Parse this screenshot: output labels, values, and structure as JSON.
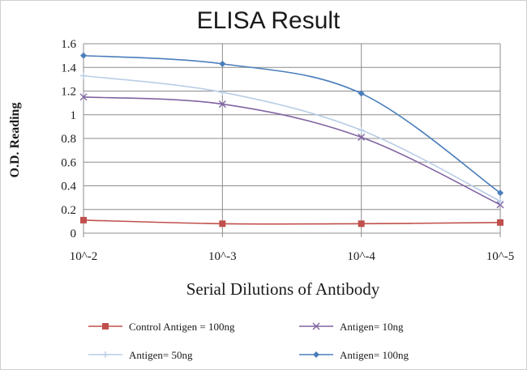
{
  "chart_data": {
    "type": "line",
    "title": "ELISA Result",
    "xlabel": "Serial Dilutions  of Antibody",
    "ylabel": "O.D. Reading",
    "categories": [
      "10^-2",
      "10^-3",
      "10^-4",
      "10^-5"
    ],
    "ylim": [
      0,
      1.6
    ],
    "yticks": [
      0,
      0.2,
      0.4,
      0.6,
      0.8,
      1,
      1.2,
      1.4,
      1.6
    ],
    "grid": true,
    "legend_position": "bottom",
    "series": [
      {
        "name": "Control Antigen = 100ng",
        "values": [
          0.11,
          0.08,
          0.08,
          0.09
        ],
        "color": "#c0504d",
        "marker": "square"
      },
      {
        "name": "Antigen= 10ng",
        "values": [
          1.15,
          1.09,
          0.81,
          0.24
        ],
        "color": "#8064a2",
        "marker": "x"
      },
      {
        "name": "Antigen= 50ng",
        "values": [
          1.33,
          1.19,
          0.87,
          0.27
        ],
        "color": "#b9cde5",
        "marker": "plus"
      },
      {
        "name": "Antigen= 100ng",
        "values": [
          1.5,
          1.43,
          1.18,
          0.34
        ],
        "color": "#4a7ebb",
        "marker": "diamond"
      }
    ]
  }
}
